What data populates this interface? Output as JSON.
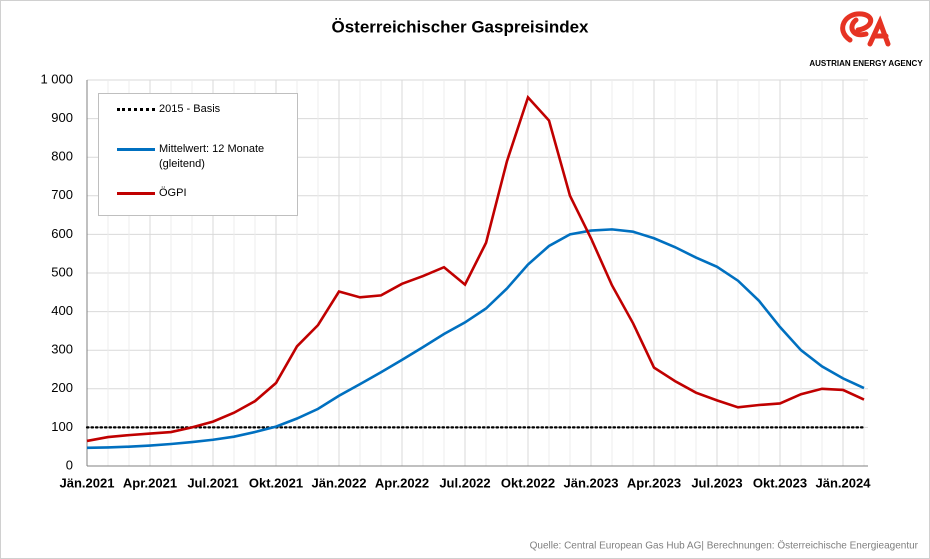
{
  "chart_data": {
    "type": "line",
    "title": "Österreichischer  Gaspreisindex",
    "categories": [
      "Jän.2021",
      null,
      null,
      "Apr.2021",
      null,
      null,
      "Jul.2021",
      null,
      null,
      "Okt.2021",
      null,
      null,
      "Jän.2022",
      null,
      null,
      "Apr.2022",
      null,
      null,
      "Jul.2022",
      null,
      null,
      "Okt.2022",
      null,
      null,
      "Jän.2023",
      null,
      null,
      "Apr.2023",
      null,
      null,
      "Jul.2023",
      null,
      null,
      "Okt.2023",
      null,
      null,
      "Jän.2024",
      null
    ],
    "series": [
      {
        "name": "2015 - Basis",
        "color": "#000000",
        "dash": "dotted",
        "values": [
          100,
          100,
          100,
          100,
          100,
          100,
          100,
          100,
          100,
          100,
          100,
          100,
          100,
          100,
          100,
          100,
          100,
          100,
          100,
          100,
          100,
          100,
          100,
          100,
          100,
          100,
          100,
          100,
          100,
          100,
          100,
          100,
          100,
          100,
          100,
          100,
          100,
          100
        ]
      },
      {
        "name": "Mittelwert: 12 Monate (gleitend)",
        "color": "#0070c0",
        "values": [
          47,
          48,
          50,
          53,
          57,
          62,
          68,
          76,
          88,
          102,
          123,
          148,
          182,
          212,
          243,
          275,
          308,
          342,
          372,
          408,
          460,
          522,
          570,
          600,
          610,
          613,
          607,
          590,
          567,
          540,
          516,
          480,
          428,
          360,
          300,
          258,
          227,
          202
        ]
      },
      {
        "name": "ÖGPI",
        "color": "#c00000",
        "values": [
          65,
          75,
          80,
          84,
          88,
          100,
          115,
          138,
          168,
          215,
          310,
          365,
          452,
          437,
          442,
          472,
          492,
          515,
          470,
          578,
          790,
          955,
          895,
          700,
          590,
          468,
          370,
          255,
          220,
          190,
          170,
          152,
          158,
          162,
          186,
          200,
          197,
          172
        ]
      }
    ],
    "ylim": [
      0,
      1000
    ],
    "yticks": [
      0,
      100,
      200,
      300,
      400,
      500,
      600,
      700,
      800,
      900,
      {
        "value": 1000,
        "label": "1 000"
      }
    ],
    "grid": true,
    "legend": "upper left",
    "logo_text": "AUSTRIAN ENERGY AGENCY",
    "source": "Quelle: Central European Gas Hub AG| Berechnungen: Österreichische Energieagentur"
  }
}
